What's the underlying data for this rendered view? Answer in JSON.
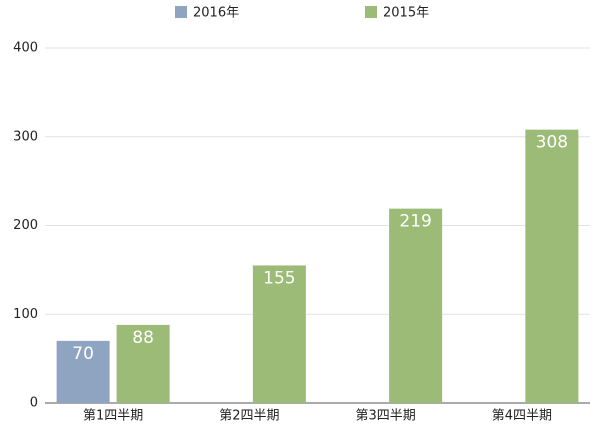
{
  "chart_data": {
    "type": "bar",
    "categories": [
      "第1四半期",
      "第2四半期",
      "第3四半期",
      "第4四半期"
    ],
    "series": [
      {
        "name": "2016年",
        "color": "#8fa4c0",
        "values": [
          70,
          null,
          null,
          null
        ]
      },
      {
        "name": "2015年",
        "color": "#9bbb76",
        "values": [
          88,
          155,
          219,
          308
        ]
      }
    ],
    "ylim": [
      0,
      400
    ],
    "yticks": [
      0,
      100,
      200,
      300,
      400
    ],
    "grid": true,
    "legend": "top"
  }
}
